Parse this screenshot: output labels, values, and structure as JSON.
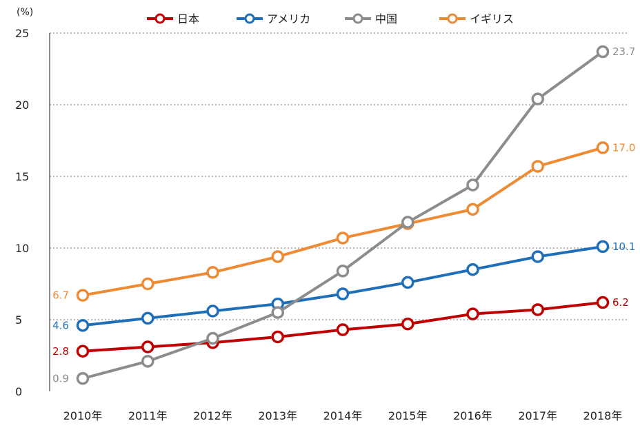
{
  "chart_data": {
    "type": "line",
    "title": "",
    "unit_label": "(%)",
    "categories": [
      "2010年",
      "2011年",
      "2012年",
      "2013年",
      "2014年",
      "2015年",
      "2016年",
      "2017年",
      "2018年"
    ],
    "ylim": [
      0,
      25
    ],
    "yticks": [
      "0",
      "5",
      "10",
      "15",
      "20",
      "25"
    ],
    "grid": "horizontal dotted",
    "legend_position": "top",
    "series": [
      {
        "name": "日本",
        "color": "#c00000",
        "values": [
          2.8,
          3.1,
          3.4,
          3.8,
          4.3,
          4.7,
          5.4,
          5.7,
          6.2
        ],
        "start_label": "2.8",
        "end_label": "6.2"
      },
      {
        "name": "アメリカ",
        "color": "#1f6fb8",
        "values": [
          4.6,
          5.1,
          5.6,
          6.1,
          6.8,
          7.6,
          8.5,
          9.4,
          10.1
        ],
        "start_label": "4.6",
        "end_label": "10.1"
      },
      {
        "name": "中国",
        "color": "#8c8c8c",
        "values": [
          0.9,
          2.1,
          3.7,
          5.5,
          8.4,
          11.8,
          14.4,
          20.4,
          23.7
        ],
        "start_label": "0.9",
        "end_label": "23.7"
      },
      {
        "name": "イギリス",
        "color": "#ed8b35",
        "values": [
          6.7,
          7.5,
          8.3,
          9.4,
          10.7,
          11.7,
          12.7,
          15.7,
          17.0
        ],
        "start_label": "6.7",
        "end_label": "17.0"
      }
    ]
  }
}
